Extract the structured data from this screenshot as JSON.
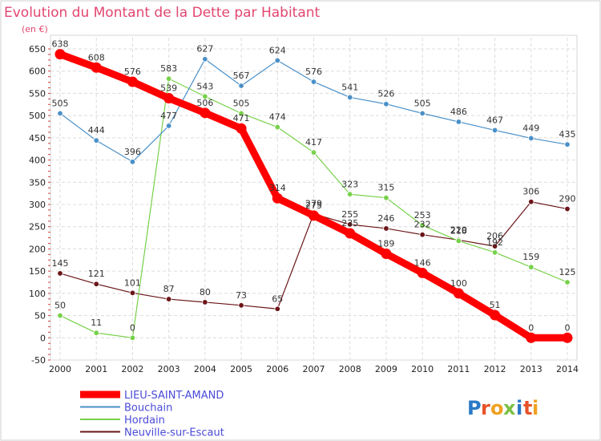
{
  "chart_data": {
    "type": "line",
    "title": "Evolution du Montant de la Dette par Habitant",
    "unit_label": "(en €)",
    "x": [
      "2000",
      "2001",
      "2002",
      "2003",
      "2004",
      "2005",
      "2006",
      "2007",
      "2008",
      "2009",
      "2010",
      "2011",
      "2012",
      "2013",
      "2014"
    ],
    "ylim": [
      -50,
      650
    ],
    "yticks": [
      -50,
      0,
      50,
      100,
      150,
      200,
      250,
      300,
      350,
      400,
      450,
      500,
      550,
      600,
      650
    ],
    "grid": true,
    "legend_position": "bottom-left",
    "series": [
      {
        "name": "LIEU-SAINT-AMAND",
        "color": "#ff0000",
        "values": [
          638,
          608,
          576,
          539,
          506,
          471,
          314,
          275,
          235,
          189,
          146,
          100,
          51,
          0,
          0
        ]
      },
      {
        "name": "Bouchain",
        "color": "#4a90c8",
        "values": [
          505,
          444,
          396,
          477,
          627,
          567,
          624,
          576,
          541,
          526,
          505,
          486,
          467,
          449,
          435
        ]
      },
      {
        "name": "Hordain",
        "color": "#77d14a",
        "values": [
          50,
          11,
          0,
          583,
          543,
          505,
          474,
          417,
          323,
          315,
          253,
          218,
          192,
          159,
          125
        ]
      },
      {
        "name": "Neuville-sur-Escaut",
        "color": "#6b1518",
        "values": [
          145,
          121,
          101,
          87,
          80,
          73,
          65,
          279,
          255,
          246,
          232,
          220,
          206,
          306,
          290
        ]
      }
    ]
  },
  "brand": {
    "letters": [
      "P",
      "r",
      "o",
      "x",
      "i",
      "t",
      "i"
    ],
    "colors": [
      "#2a79c8",
      "#e8522a",
      "#f0a020",
      "#7bc043",
      "#2a79c8",
      "#e8522a",
      "#f0a020"
    ]
  }
}
